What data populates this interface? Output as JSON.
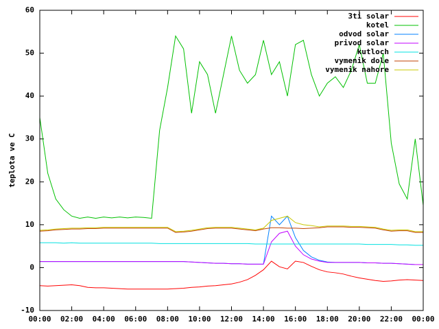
{
  "chart_data": {
    "type": "line",
    "ylabel": "teplota ve C",
    "x": [
      0,
      0.5,
      1,
      1.5,
      2,
      2.5,
      3,
      3.5,
      4,
      4.5,
      5,
      5.5,
      6,
      6.5,
      7,
      7.5,
      8,
      8.5,
      9,
      9.5,
      10,
      10.5,
      11,
      11.5,
      12,
      12.5,
      13,
      13.5,
      14,
      14.5,
      15,
      15.5,
      16,
      16.5,
      17,
      17.5,
      18,
      18.5,
      19,
      19.5,
      20,
      20.5,
      21,
      21.5,
      22,
      22.5,
      23,
      23.5,
      24
    ],
    "xlim": [
      0,
      24
    ],
    "xticks": [
      {
        "value": 0,
        "label": "00:00"
      },
      {
        "value": 2,
        "label": "02:00"
      },
      {
        "value": 4,
        "label": "04:00"
      },
      {
        "value": 6,
        "label": "06:00"
      },
      {
        "value": 8,
        "label": "08:00"
      },
      {
        "value": 10,
        "label": "10:00"
      },
      {
        "value": 12,
        "label": "12:00"
      },
      {
        "value": 14,
        "label": "14:00"
      },
      {
        "value": 16,
        "label": "16:00"
      },
      {
        "value": 18,
        "label": "18:00"
      },
      {
        "value": 20,
        "label": "20:00"
      },
      {
        "value": 22,
        "label": "22:00"
      },
      {
        "value": 24,
        "label": "00:00"
      }
    ],
    "ylim": [
      -10,
      60
    ],
    "yticks": [
      -10,
      0,
      10,
      20,
      30,
      40,
      50,
      60
    ],
    "legend": "top-right",
    "series": [
      {
        "name": "3ti solar",
        "color": "#ff0000",
        "values": [
          -4.2,
          -4.3,
          -4.2,
          -4.1,
          -4.0,
          -4.2,
          -4.6,
          -4.7,
          -4.7,
          -4.8,
          -4.9,
          -5,
          -5,
          -5,
          -5,
          -5,
          -5,
          -4.9,
          -4.8,
          -4.6,
          -4.5,
          -4.3,
          -4.2,
          -4,
          -3.8,
          -3.4,
          -2.8,
          -1.8,
          -0.5,
          1.5,
          0.2,
          -0.3,
          1.5,
          1.2,
          0.3,
          -0.5,
          -1,
          -1.2,
          -1.5,
          -2,
          -2.4,
          -2.7,
          -3,
          -3.2,
          -3.1,
          -2.9,
          -2.8,
          -2.9,
          -3.0
        ]
      },
      {
        "name": "kotel",
        "color": "#00c000",
        "values": [
          35,
          22,
          16,
          13.5,
          12,
          11.5,
          11.8,
          11.5,
          11.8,
          11.6,
          11.8,
          11.6,
          11.8,
          11.7,
          11.5,
          32,
          42,
          54,
          51,
          36,
          48,
          45,
          36,
          45,
          54,
          46,
          43,
          45,
          53,
          45,
          48,
          40,
          52,
          53,
          45,
          40,
          43,
          44.5,
          42,
          46,
          52,
          43,
          43,
          50,
          29,
          19.5,
          16,
          30,
          14.5
        ]
      },
      {
        "name": "odvod solar",
        "color": "#0080ff",
        "values": [
          1.4,
          1.4,
          1.4,
          1.4,
          1.4,
          1.4,
          1.4,
          1.4,
          1.4,
          1.4,
          1.4,
          1.4,
          1.4,
          1.4,
          1.4,
          1.4,
          1.4,
          1.4,
          1.4,
          1.3,
          1.2,
          1.1,
          1.0,
          1.0,
          0.9,
          0.9,
          0.8,
          0.8,
          0.8,
          12,
          10,
          12,
          7,
          4,
          2.5,
          1.7,
          1.3,
          1.2,
          1.2,
          1.2,
          1.2,
          1.1,
          1.1,
          1.0,
          1.0,
          0.9,
          0.8,
          0.7,
          0.7
        ]
      },
      {
        "name": "privod solar",
        "color": "#c000ff",
        "values": [
          1.4,
          1.4,
          1.4,
          1.4,
          1.4,
          1.4,
          1.4,
          1.4,
          1.4,
          1.4,
          1.4,
          1.4,
          1.4,
          1.4,
          1.4,
          1.4,
          1.4,
          1.4,
          1.4,
          1.3,
          1.2,
          1.1,
          1.0,
          1.0,
          0.9,
          0.9,
          0.8,
          0.8,
          0.8,
          6,
          8,
          8.5,
          5,
          3,
          2,
          1.5,
          1.2,
          1.2,
          1.2,
          1.2,
          1.2,
          1.1,
          1.1,
          1.0,
          1.0,
          0.9,
          0.8,
          0.7,
          0.7
        ]
      },
      {
        "name": "kutloch",
        "color": "#00e0e0",
        "values": [
          5.8,
          5.8,
          5.8,
          5.7,
          5.8,
          5.7,
          5.7,
          5.7,
          5.7,
          5.7,
          5.7,
          5.7,
          5.7,
          5.7,
          5.7,
          5.6,
          5.6,
          5.6,
          5.6,
          5.6,
          5.6,
          5.6,
          5.6,
          5.6,
          5.6,
          5.6,
          5.6,
          5.5,
          5.5,
          5.5,
          5.5,
          5.5,
          5.5,
          5.5,
          5.5,
          5.5,
          5.5,
          5.5,
          5.5,
          5.5,
          5.5,
          5.4,
          5.4,
          5.4,
          5.4,
          5.3,
          5.3,
          5.2,
          5.2
        ]
      },
      {
        "name": "vymenik dole",
        "color": "#c04000",
        "values": [
          8.5,
          8.6,
          8.8,
          8.9,
          9.0,
          9.0,
          9.1,
          9.1,
          9.2,
          9.2,
          9.2,
          9.2,
          9.2,
          9.2,
          9.2,
          9.2,
          9.2,
          8.2,
          8.3,
          8.5,
          8.8,
          9.1,
          9.2,
          9.2,
          9.2,
          9.0,
          8.8,
          8.6,
          9.0,
          9.3,
          9.3,
          9.2,
          9.2,
          9.1,
          9.2,
          9.3,
          9.5,
          9.5,
          9.5,
          9.4,
          9.4,
          9.3,
          9.2,
          8.8,
          8.5,
          8.6,
          8.6,
          8.2,
          8.2
        ]
      },
      {
        "name": "vymenik nahore",
        "color": "#c8c800",
        "values": [
          8.7,
          8.8,
          9.0,
          9.1,
          9.2,
          9.2,
          9.3,
          9.3,
          9.4,
          9.4,
          9.4,
          9.4,
          9.4,
          9.4,
          9.4,
          9.4,
          9.4,
          8.4,
          8.5,
          8.7,
          9.0,
          9.3,
          9.4,
          9.4,
          9.4,
          9.2,
          9.0,
          8.8,
          9.2,
          11.0,
          11.5,
          12.0,
          10.5,
          10.0,
          9.8,
          9.5,
          9.7,
          9.7,
          9.7,
          9.6,
          9.6,
          9.5,
          9.4,
          9.0,
          8.7,
          8.8,
          8.8,
          8.4,
          8.4
        ]
      }
    ]
  }
}
